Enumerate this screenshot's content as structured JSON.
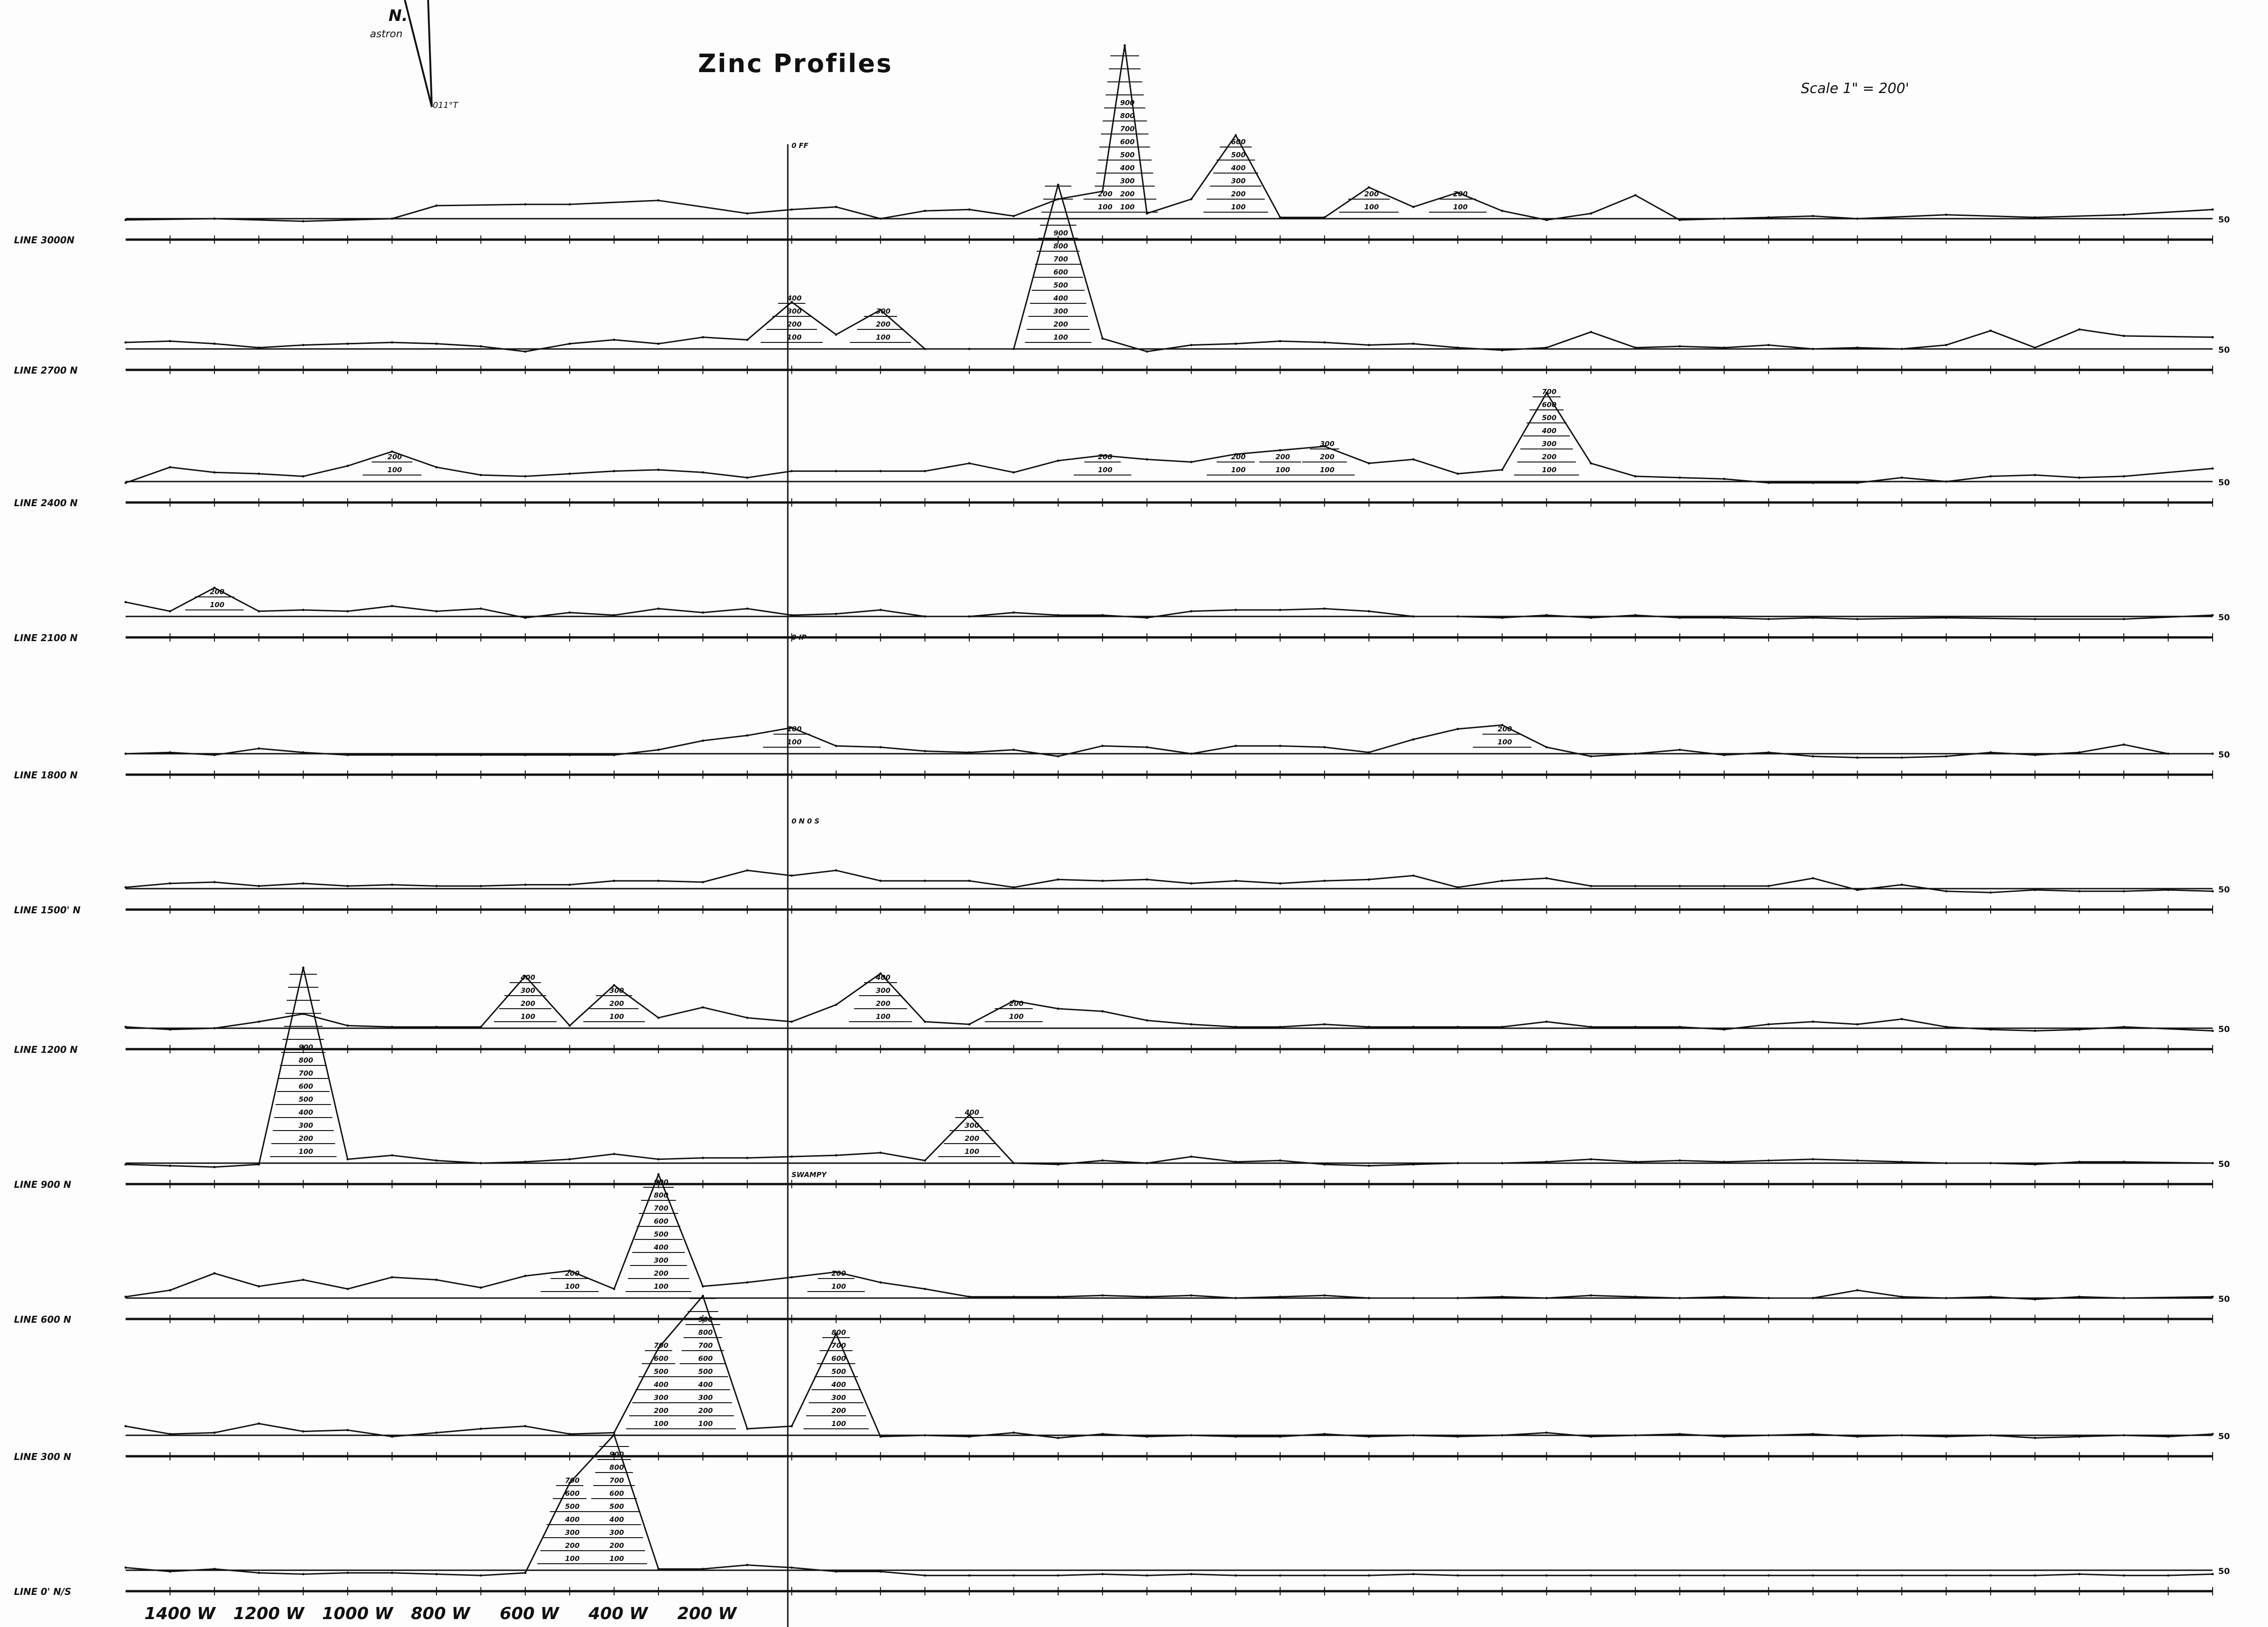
{
  "title": "Zinc Profiles",
  "scale_text": "Scale 1\" = 200'",
  "north_arrow": {
    "label": "N.",
    "sub": "astron",
    "declination": "011°T"
  },
  "colors": {
    "ink": "#111111",
    "paper": "#fdfdfd"
  },
  "chart_data": {
    "type": "line",
    "title": "Zinc Profiles",
    "xlabel": "",
    "ylabel": "",
    "x_unit": "stations (ft, W negative)",
    "x_tick_labels": [
      "1400 W",
      "1200 W",
      "1000 W",
      "800 W",
      "600 W",
      "400 W",
      "200 W"
    ],
    "x_ticks": [
      -1400,
      -1200,
      -1000,
      -800,
      -600,
      -400,
      -200
    ],
    "x_range": [
      -1500,
      3200
    ],
    "contour_labels": [
      "50",
      "100",
      "200",
      "300",
      "400",
      "500",
      "600",
      "700",
      "800",
      "900"
    ],
    "annotations": [
      "0 FF",
      "0 IP",
      "0 N 0 S",
      "SWAMPY"
    ],
    "series": [
      {
        "name": "LINE 3000 N",
        "line_label": "LINE 3000N",
        "right_label": "50",
        "x": [
          -1500,
          -1300,
          -1100,
          -900,
          -800,
          -600,
          -500,
          -300,
          -100,
          0,
          100,
          200,
          300,
          400,
          500,
          600,
          700,
          750,
          800,
          900,
          1000,
          1100,
          1200,
          1300,
          1400,
          1500,
          1600,
          1700,
          1800,
          1900,
          2000,
          2100,
          2200,
          2300,
          2400,
          2600,
          2800,
          3000,
          3200
        ],
        "y": [
          40,
          50,
          30,
          50,
          150,
          160,
          160,
          190,
          90,
          120,
          140,
          50,
          110,
          120,
          70,
          200,
          260,
          1380,
          90,
          200,
          690,
          60,
          60,
          290,
          140,
          250,
          110,
          40,
          90,
          230,
          40,
          50,
          60,
          70,
          50,
          80,
          60,
          80,
          120
        ]
      },
      {
        "name": "LINE 2700 N",
        "line_label": "LINE 2700 N",
        "right_label": "50",
        "x": [
          -1500,
          -1400,
          -1300,
          -1200,
          -1100,
          -1000,
          -900,
          -800,
          -700,
          -600,
          -500,
          -400,
          -300,
          -200,
          -100,
          0,
          100,
          200,
          300,
          400,
          500,
          600,
          700,
          800,
          900,
          1000,
          1100,
          1200,
          1300,
          1400,
          1500,
          1600,
          1700,
          1800,
          1900,
          2000,
          2100,
          2200,
          2300,
          2400,
          2500,
          2600,
          2700,
          2800,
          2900,
          3000,
          3200
        ],
        "y": [
          100,
          110,
          90,
          60,
          80,
          90,
          100,
          90,
          70,
          30,
          90,
          120,
          90,
          140,
          120,
          410,
          160,
          350,
          50,
          50,
          50,
          1310,
          130,
          30,
          80,
          90,
          110,
          100,
          80,
          90,
          60,
          40,
          60,
          180,
          60,
          70,
          60,
          80,
          50,
          60,
          50,
          80,
          190,
          60,
          200,
          150,
          140
        ]
      },
      {
        "name": "LINE 2400 N",
        "line_label": "LINE 2400 N",
        "right_label": "50",
        "x": [
          -1500,
          -1400,
          -1300,
          -1200,
          -1100,
          -1000,
          -900,
          -800,
          -700,
          -600,
          -500,
          -400,
          -300,
          -200,
          -100,
          0,
          100,
          200,
          300,
          400,
          500,
          600,
          700,
          800,
          900,
          1000,
          1100,
          1200,
          1300,
          1400,
          1500,
          1600,
          1700,
          1800,
          1900,
          2000,
          2100,
          2200,
          2300,
          2400,
          2500,
          2600,
          2700,
          2800,
          2900,
          3000,
          3200
        ],
        "y": [
          40,
          160,
          120,
          110,
          90,
          170,
          280,
          160,
          100,
          90,
          110,
          130,
          140,
          120,
          80,
          130,
          130,
          130,
          130,
          190,
          120,
          210,
          250,
          220,
          200,
          260,
          290,
          320,
          190,
          220,
          110,
          140,
          730,
          190,
          90,
          80,
          70,
          40,
          40,
          40,
          80,
          50,
          90,
          100,
          80,
          90,
          150
        ]
      },
      {
        "name": "LINE 2100 N",
        "line_label": "LINE 2100 N",
        "right_label": "50",
        "x": [
          -1500,
          -1400,
          -1300,
          -1200,
          -1100,
          -1000,
          -900,
          -800,
          -700,
          -600,
          -500,
          -400,
          -300,
          -200,
          -100,
          0,
          100,
          200,
          300,
          400,
          500,
          600,
          700,
          800,
          900,
          1000,
          1100,
          1200,
          1300,
          1400,
          1500,
          1600,
          1700,
          1800,
          1900,
          2000,
          2100,
          2200,
          2300,
          2400,
          2600,
          2800,
          3000,
          3200
        ],
        "y": [
          160,
          90,
          270,
          90,
          100,
          90,
          130,
          90,
          110,
          40,
          80,
          60,
          110,
          80,
          110,
          60,
          70,
          100,
          50,
          50,
          80,
          60,
          60,
          40,
          90,
          100,
          100,
          110,
          90,
          50,
          50,
          40,
          60,
          40,
          60,
          40,
          40,
          30,
          40,
          30,
          40,
          30,
          30,
          60
        ]
      },
      {
        "name": "LINE 1800 N",
        "line_label": "LINE 1800 N",
        "right_label": "50",
        "x": [
          -1500,
          -1400,
          -1300,
          -1200,
          -1100,
          -1000,
          -900,
          -800,
          -700,
          -600,
          -500,
          -400,
          -300,
          -200,
          -100,
          0,
          100,
          200,
          300,
          400,
          500,
          600,
          700,
          800,
          900,
          1000,
          1100,
          1200,
          1300,
          1400,
          1500,
          1600,
          1700,
          1800,
          1900,
          2000,
          2100,
          2200,
          2300,
          2400,
          2500,
          2600,
          2700,
          2800,
          2900,
          3000,
          3100,
          3200
        ],
        "y": [
          50,
          60,
          40,
          90,
          60,
          40,
          40,
          40,
          40,
          40,
          40,
          40,
          80,
          150,
          190,
          250,
          110,
          100,
          70,
          60,
          80,
          30,
          110,
          100,
          50,
          110,
          110,
          100,
          60,
          160,
          240,
          270,
          100,
          30,
          50,
          80,
          40,
          60,
          30,
          20,
          20,
          30,
          60,
          40,
          60,
          120,
          50,
          50
        ]
      },
      {
        "name": "LINE 1500 N",
        "line_label": "LINE 1500' N",
        "right_label": "50",
        "x": [
          -1500,
          -1400,
          -1300,
          -1200,
          -1100,
          -1000,
          -900,
          -800,
          -700,
          -600,
          -500,
          -400,
          -300,
          -200,
          -100,
          0,
          100,
          200,
          300,
          400,
          500,
          600,
          700,
          800,
          900,
          1000,
          1100,
          1200,
          1300,
          1400,
          1500,
          1600,
          1700,
          1800,
          1900,
          2000,
          2100,
          2200,
          2300,
          2400,
          2500,
          2600,
          2700,
          2800,
          2900,
          3000,
          3100,
          3200
        ],
        "y": [
          60,
          90,
          100,
          70,
          90,
          70,
          80,
          70,
          70,
          80,
          80,
          110,
          110,
          100,
          190,
          150,
          190,
          110,
          110,
          110,
          60,
          120,
          110,
          120,
          90,
          110,
          90,
          110,
          120,
          150,
          60,
          110,
          130,
          70,
          70,
          70,
          70,
          70,
          130,
          40,
          80,
          30,
          20,
          40,
          30,
          30,
          40,
          30
        ]
      },
      {
        "name": "LINE 1200 N",
        "line_label": "LINE 1200 N",
        "right_label": "50",
        "x": [
          -1500,
          -1400,
          -1300,
          -1200,
          -1100,
          -1000,
          -900,
          -800,
          -700,
          -600,
          -500,
          -400,
          -300,
          -200,
          -100,
          0,
          100,
          200,
          300,
          400,
          500,
          600,
          700,
          800,
          900,
          1000,
          1100,
          1200,
          1300,
          1400,
          1500,
          1600,
          1700,
          1800,
          1900,
          2000,
          2100,
          2200,
          2300,
          2400,
          2500,
          2600,
          2700,
          2800,
          2900,
          3000,
          3200
        ],
        "y": [
          60,
          40,
          50,
          100,
          160,
          70,
          60,
          60,
          60,
          450,
          70,
          380,
          130,
          210,
          130,
          100,
          230,
          470,
          100,
          80,
          260,
          200,
          180,
          110,
          80,
          60,
          60,
          80,
          60,
          60,
          60,
          60,
          100,
          60,
          60,
          60,
          40,
          80,
          100,
          80,
          120,
          60,
          40,
          30,
          40,
          60,
          30
        ]
      },
      {
        "name": "LINE 900 N",
        "line_label": "LINE 900 N",
        "right_label": "50",
        "x": [
          -1500,
          -1400,
          -1300,
          -1200,
          -1100,
          -1000,
          -900,
          -800,
          -700,
          -600,
          -500,
          -400,
          -300,
          -200,
          -100,
          0,
          100,
          200,
          300,
          400,
          500,
          600,
          700,
          800,
          900,
          1000,
          1100,
          1200,
          1300,
          1400,
          1500,
          1600,
          1700,
          1800,
          1900,
          2000,
          2100,
          2200,
          2300,
          2400,
          2500,
          2600,
          2700,
          2800,
          2900,
          3000,
          3200
        ],
        "y": [
          40,
          30,
          20,
          40,
          1550,
          80,
          110,
          70,
          50,
          60,
          80,
          120,
          80,
          90,
          90,
          100,
          110,
          130,
          70,
          420,
          50,
          40,
          70,
          50,
          100,
          60,
          70,
          40,
          30,
          40,
          50,
          50,
          60,
          80,
          60,
          70,
          60,
          70,
          80,
          70,
          60,
          50,
          50,
          40,
          60,
          60,
          50
        ]
      },
      {
        "name": "LINE 600 N",
        "line_label": "LINE 600 N",
        "right_label": "50",
        "x": [
          -1500,
          -1400,
          -1300,
          -1200,
          -1100,
          -1000,
          -900,
          -800,
          -700,
          -600,
          -500,
          -400,
          -300,
          -200,
          -100,
          0,
          100,
          200,
          300,
          400,
          500,
          600,
          700,
          800,
          900,
          1000,
          1100,
          1200,
          1300,
          1400,
          1500,
          1600,
          1700,
          1800,
          1900,
          2000,
          2100,
          2200,
          2300,
          2400,
          2500,
          2600,
          2700,
          2800,
          2900,
          3000,
          3200
        ],
        "y": [
          60,
          110,
          240,
          140,
          190,
          120,
          210,
          190,
          130,
          220,
          260,
          120,
          1000,
          140,
          170,
          210,
          250,
          170,
          120,
          60,
          60,
          60,
          70,
          60,
          70,
          50,
          60,
          70,
          50,
          50,
          50,
          60,
          50,
          70,
          60,
          50,
          60,
          50,
          50,
          110,
          60,
          50,
          60,
          40,
          60,
          50,
          60
        ]
      },
      {
        "name": "LINE 300 N",
        "line_label": "LINE 300 N",
        "right_label": "50",
        "x": [
          -1500,
          -1400,
          -1300,
          -1200,
          -1100,
          -1000,
          -900,
          -800,
          -700,
          -600,
          -500,
          -400,
          -300,
          -200,
          -100,
          0,
          100,
          200,
          300,
          400,
          500,
          600,
          700,
          800,
          900,
          1000,
          1100,
          1200,
          1300,
          1400,
          1500,
          1600,
          1700,
          1800,
          1900,
          2000,
          2100,
          2200,
          2300,
          2400,
          2500,
          2600,
          2700,
          2800,
          2900,
          3000,
          3100,
          3200
        ],
        "y": [
          120,
          60,
          70,
          140,
          80,
          90,
          40,
          70,
          100,
          120,
          60,
          70,
          720,
          1120,
          100,
          120,
          830,
          40,
          50,
          40,
          70,
          30,
          60,
          40,
          50,
          40,
          40,
          60,
          40,
          50,
          40,
          50,
          70,
          40,
          50,
          60,
          40,
          50,
          60,
          40,
          50,
          40,
          50,
          30,
          40,
          50,
          40,
          60
        ]
      },
      {
        "name": "LINE 0 N/S",
        "line_label": "LINE 0' N/S",
        "right_label": "50",
        "x": [
          -1500,
          -1400,
          -1300,
          -1200,
          -1100,
          -1000,
          -900,
          -800,
          -700,
          -600,
          -500,
          -400,
          -300,
          -200,
          -100,
          0,
          100,
          200,
          300,
          400,
          500,
          600,
          700,
          800,
          900,
          1000,
          1100,
          1200,
          1300,
          1400,
          1500,
          1600,
          1700,
          1800,
          1900,
          2000,
          2100,
          2200,
          2300,
          2400,
          2500,
          2600,
          2700,
          2800,
          2900,
          3000,
          3100,
          3200
        ],
        "y": [
          70,
          40,
          60,
          30,
          20,
          30,
          30,
          20,
          10,
          30,
          720,
          1090,
          60,
          60,
          90,
          70,
          40,
          40,
          10,
          10,
          10,
          10,
          20,
          10,
          20,
          10,
          10,
          10,
          10,
          20,
          10,
          10,
          10,
          10,
          10,
          10,
          10,
          10,
          10,
          10,
          10,
          10,
          10,
          10,
          20,
          10,
          10,
          20
        ]
      }
    ]
  }
}
